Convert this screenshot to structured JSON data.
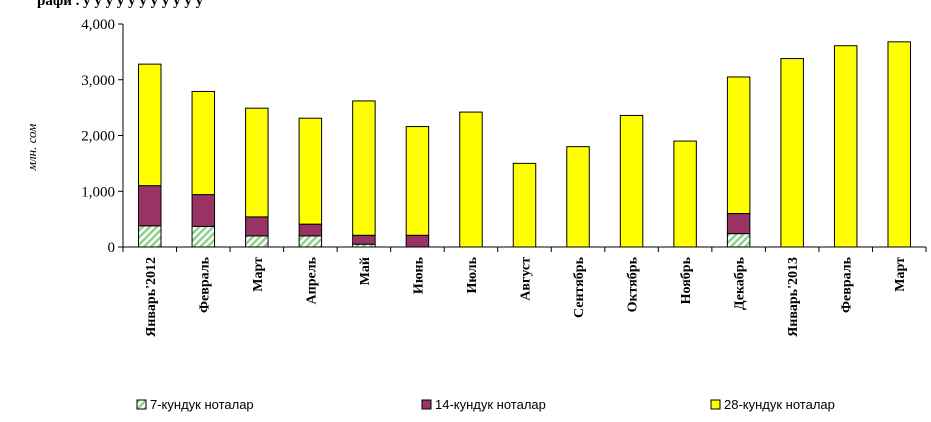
{
  "chart_data": {
    "type": "bar",
    "stacked": true,
    "title": "рафи . у у у у у у у у у у у",
    "ylabel": "млн. сом",
    "xlabel": "",
    "ylim": [
      0,
      4000
    ],
    "yticks": [
      "0",
      "1,000",
      "2,000",
      "3,000",
      "4,000"
    ],
    "ytick_values": [
      0,
      1000,
      2000,
      3000,
      4000
    ],
    "grid": false,
    "legend_position": "bottom",
    "categories": [
      "Январь'2012",
      "Февраль",
      "Март",
      "Апрель",
      "Май",
      "Июнь",
      "Июль",
      "Август",
      "Сентябрь",
      "Октябрь",
      "Ноябрь",
      "Декабрь",
      "Январь'2013",
      "Февраль",
      "Март"
    ],
    "series": [
      {
        "name": "7-кундук ноталар",
        "color": "#e6f5e0",
        "values": [
          380,
          370,
          200,
          200,
          50,
          0,
          0,
          0,
          0,
          0,
          0,
          240,
          0,
          0,
          0
        ]
      },
      {
        "name": "14-кундук ноталар",
        "color": "#993366",
        "values": [
          720,
          570,
          340,
          210,
          160,
          210,
          0,
          0,
          0,
          0,
          0,
          360,
          0,
          0,
          0
        ]
      },
      {
        "name": "28-кундук ноталар",
        "color": "#ffff00",
        "values": [
          2180,
          1850,
          1950,
          1900,
          2410,
          1950,
          2420,
          1500,
          1800,
          2360,
          1900,
          2450,
          3380,
          3610,
          3680
        ]
      }
    ]
  }
}
